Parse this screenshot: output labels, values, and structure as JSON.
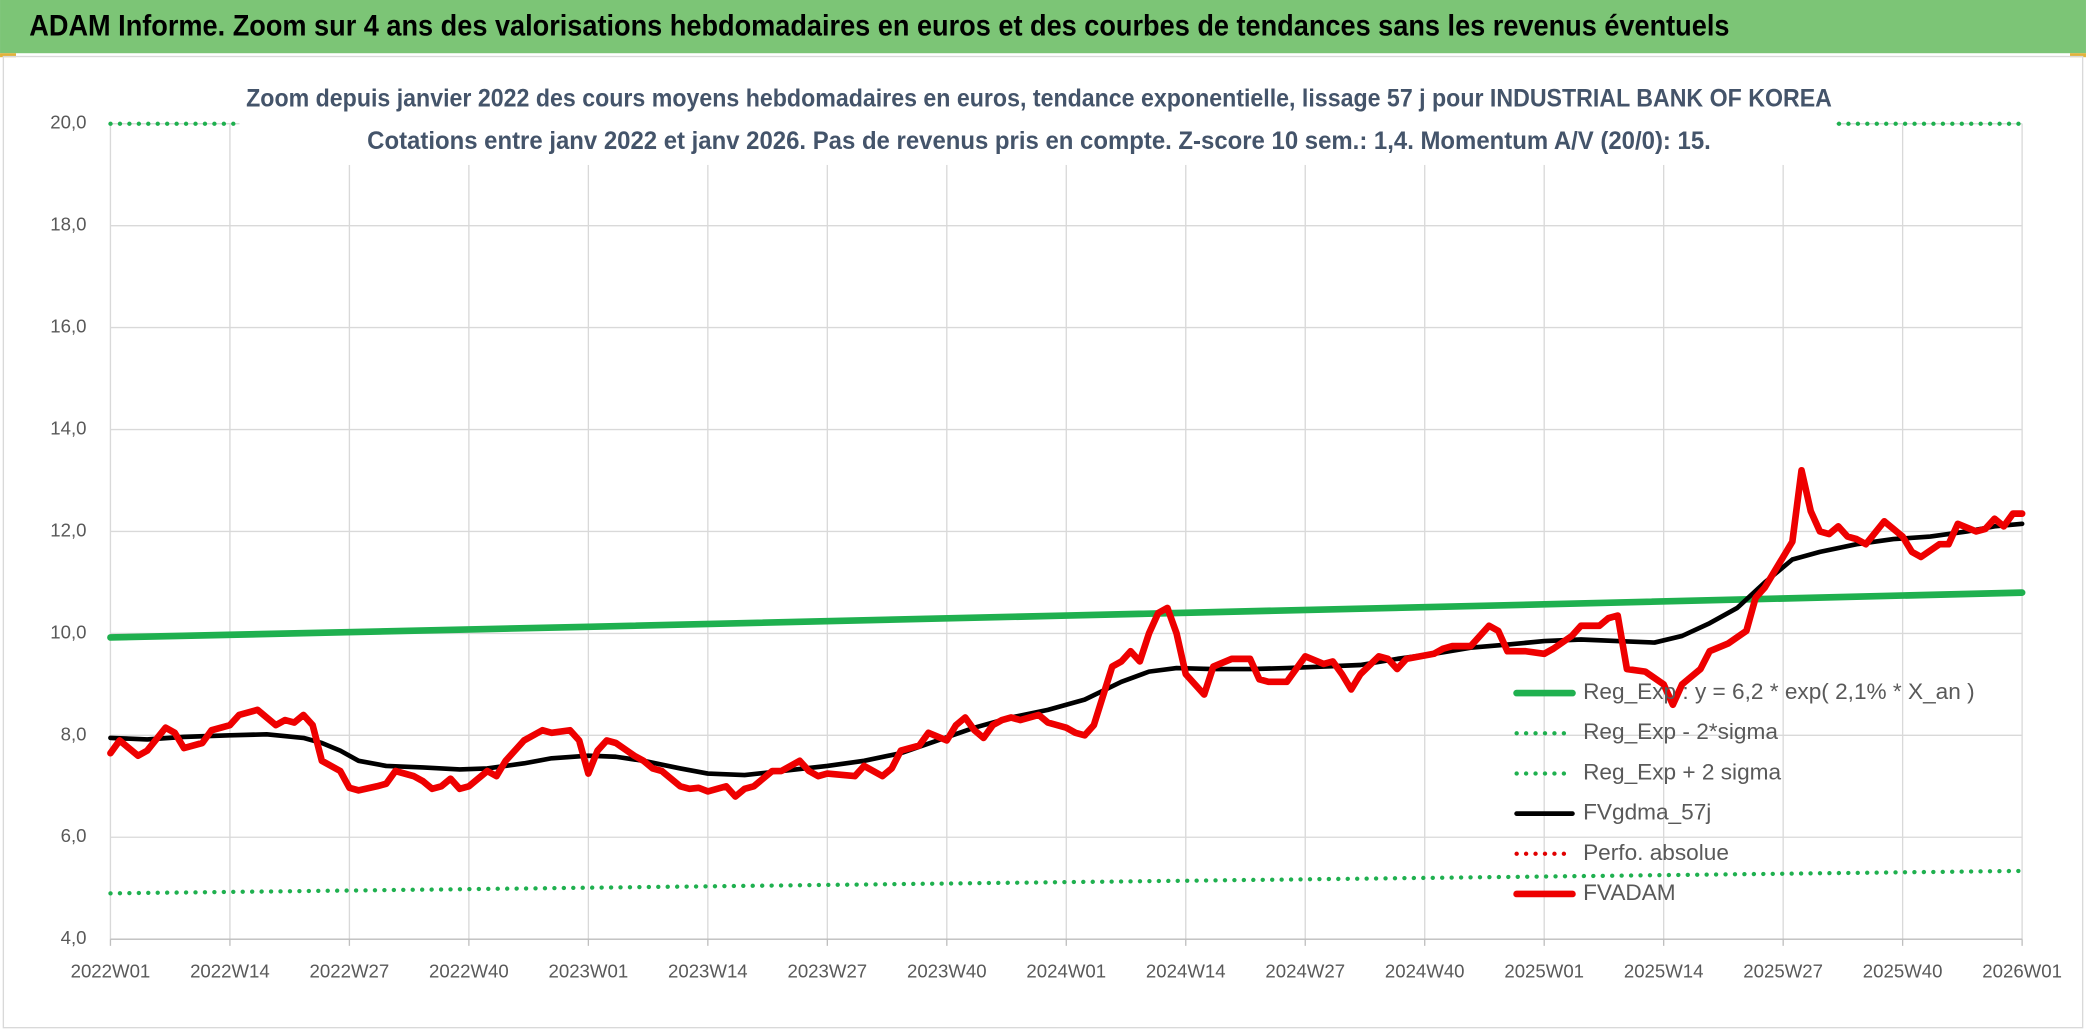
{
  "chart_data": {
    "type": "line",
    "header": "ADAM Informe. Zoom sur 4 ans des valorisations hebdomadaires en euros et des courbes de tendances sans les revenus éventuels",
    "title": "Zoom depuis janvier 2022 des cours moyens hebdomadaires en euros, tendance exponentielle, lissage 57 j pour INDUSTRIAL BANK OF KOREA",
    "subtitle": "Cotations entre janv 2022 et janv 2026. Pas de revenus pris en compte. Z-score 10 sem.: 1,4. Momentum A/V (20/0): 15.",
    "xlim": [
      "2022W01",
      "2026W01"
    ],
    "xticks": [
      "2022W01",
      "2022W14",
      "2022W27",
      "2022W40",
      "2023W01",
      "2023W14",
      "2023W27",
      "2023W40",
      "2024W01",
      "2024W14",
      "2024W27",
      "2024W40",
      "2025W01",
      "2025W14",
      "2025W27",
      "2025W40",
      "2026W01"
    ],
    "ylim": [
      4,
      20
    ],
    "yticks": [
      {
        "value": 4,
        "label": "4,0"
      },
      {
        "value": 6,
        "label": "6,0"
      },
      {
        "value": 8,
        "label": "8,0"
      },
      {
        "value": 10,
        "label": "10,0"
      },
      {
        "value": 12,
        "label": "12,0"
      },
      {
        "value": 14,
        "label": "14,0"
      },
      {
        "value": 16,
        "label": "16,0"
      },
      {
        "value": 18,
        "label": "18,0"
      },
      {
        "value": 20,
        "label": "20,0"
      }
    ],
    "grid": true,
    "legend": "right",
    "series": [
      {
        "name": "Reg_Exp : y = 6,2 * exp( 2,1% *  X_an )",
        "color": "#1fb04f",
        "style": "solid",
        "x": [
          "2022W01",
          "2023W01",
          "2024W01",
          "2025W01",
          "2026W01"
        ],
        "values": [
          9.92,
          10.13,
          10.35,
          10.57,
          10.8
        ]
      },
      {
        "name": "Reg_Exp - 2*sigma",
        "color": "#1fb04f",
        "style": "dotted",
        "x": [
          "2022W01",
          "2023W01",
          "2024W01",
          "2025W01",
          "2026W01"
        ],
        "values": [
          4.9,
          5.01,
          5.12,
          5.23,
          5.34
        ]
      },
      {
        "name": "Reg_Exp + 2 sigma",
        "color": "#1fb04f",
        "style": "dotted",
        "x": [
          "2022W01",
          "2026W01"
        ],
        "values": [
          20.0,
          20.0
        ]
      },
      {
        "name": "FVgdma_57j",
        "color": "#000000",
        "style": "solid",
        "x": [
          "2022W01",
          "2022W05",
          "2022W09",
          "2022W14",
          "2022W18",
          "2022W22",
          "2022W24",
          "2022W26",
          "2022W28",
          "2022W31",
          "2022W35",
          "2022W39",
          "2022W42",
          "2022W46",
          "2022W49",
          "2023W01",
          "2023W04",
          "2023W07",
          "2023W11",
          "2023W14",
          "2023W18",
          "2023W22",
          "2023W27",
          "2023W31",
          "2023W35",
          "2023W39",
          "2023W43",
          "2023W47",
          "2023W51",
          "2024W03",
          "2024W07",
          "2024W10",
          "2024W13",
          "2024W17",
          "2024W21",
          "2024W25",
          "2024W29",
          "2024W33",
          "2024W37",
          "2024W41",
          "2024W45",
          "2024W49",
          "2025W01",
          "2025W05",
          "2025W09",
          "2025W13",
          "2025W16",
          "2025W19",
          "2025W22",
          "2025W25",
          "2025W28",
          "2025W31",
          "2025W35",
          "2025W39",
          "2025W43",
          "2025W47",
          "2025W50",
          "2026W01"
        ],
        "values": [
          7.95,
          7.92,
          7.97,
          8.0,
          8.02,
          7.95,
          7.85,
          7.7,
          7.5,
          7.4,
          7.37,
          7.33,
          7.35,
          7.45,
          7.55,
          7.6,
          7.58,
          7.5,
          7.35,
          7.25,
          7.22,
          7.3,
          7.4,
          7.5,
          7.65,
          7.9,
          8.15,
          8.35,
          8.5,
          8.7,
          9.05,
          9.25,
          9.32,
          9.3,
          9.3,
          9.32,
          9.35,
          9.38,
          9.5,
          9.6,
          9.72,
          9.78,
          9.85,
          9.88,
          9.85,
          9.82,
          9.95,
          10.2,
          10.5,
          11.0,
          11.45,
          11.6,
          11.75,
          11.85,
          11.9,
          12.0,
          12.1,
          12.15
        ]
      },
      {
        "name": "Perfo. absolue",
        "color": "#e00000",
        "style": "dotted",
        "x": [],
        "values": []
      },
      {
        "name": "FVADAM",
        "color": "#ee0000",
        "style": "solid",
        "x": [
          "2022W01",
          "2022W02",
          "2022W04",
          "2022W05",
          "2022W07",
          "2022W08",
          "2022W09",
          "2022W11",
          "2022W12",
          "2022W14",
          "2022W15",
          "2022W17",
          "2022W19",
          "2022W20",
          "2022W21",
          "2022W22",
          "2022W23",
          "2022W24",
          "2022W26",
          "2022W27",
          "2022W28",
          "2022W30",
          "2022W31",
          "2022W32",
          "2022W34",
          "2022W35",
          "2022W36",
          "2022W37",
          "2022W38",
          "2022W39",
          "2022W40",
          "2022W42",
          "2022W43",
          "2022W44",
          "2022W46",
          "2022W48",
          "2022W49",
          "2022W51",
          "2022W52",
          "2023W01",
          "2023W02",
          "2023W03",
          "2023W04",
          "2023W06",
          "2023W07",
          "2023W08",
          "2023W09",
          "2023W11",
          "2023W12",
          "2023W13",
          "2023W14",
          "2023W16",
          "2023W17",
          "2023W18",
          "2023W19",
          "2023W21",
          "2023W22",
          "2023W24",
          "2023W25",
          "2023W26",
          "2023W27",
          "2023W30",
          "2023W31",
          "2023W33",
          "2023W34",
          "2023W35",
          "2023W37",
          "2023W38",
          "2023W40",
          "2023W41",
          "2023W42",
          "2023W43",
          "2023W44",
          "2023W45",
          "2023W46",
          "2023W47",
          "2023W48",
          "2023W50",
          "2023W51",
          "2024W01",
          "2024W02",
          "2024W03",
          "2024W04",
          "2024W06",
          "2024W07",
          "2024W08",
          "2024W09",
          "2024W10",
          "2024W11",
          "2024W12",
          "2024W13",
          "2024W14",
          "2024W16",
          "2024W17",
          "2024W19",
          "2024W21",
          "2024W22",
          "2024W23",
          "2024W25",
          "2024W26",
          "2024W27",
          "2024W29",
          "2024W30",
          "2024W31",
          "2024W32",
          "2024W33",
          "2024W35",
          "2024W36",
          "2024W37",
          "2024W38",
          "2024W41",
          "2024W42",
          "2024W43",
          "2024W45",
          "2024W47",
          "2024W48",
          "2024W49",
          "2024W51",
          "2025W01",
          "2025W02",
          "2025W04",
          "2025W05",
          "2025W07",
          "2025W08",
          "2025W09",
          "2025W10",
          "2025W12",
          "2025W14",
          "2025W15",
          "2025W16",
          "2025W18",
          "2025W19",
          "2025W21",
          "2025W23",
          "2025W24",
          "2025W25",
          "2025W27",
          "2025W28",
          "2025W29",
          "2025W30",
          "2025W31",
          "2025W32",
          "2025W33",
          "2025W34",
          "2025W35",
          "2025W36",
          "2025W38",
          "2025W40",
          "2025W41",
          "2025W42",
          "2025W44",
          "2025W45",
          "2025W46",
          "2025W48",
          "2025W49",
          "2025W50",
          "2025W51",
          "2025W52",
          "2026W01"
        ],
        "values": [
          7.65,
          7.9,
          7.6,
          7.7,
          8.15,
          8.05,
          7.75,
          7.85,
          8.1,
          8.2,
          8.4,
          8.5,
          8.2,
          8.3,
          8.25,
          8.4,
          8.2,
          7.5,
          7.3,
          6.97,
          6.92,
          7.0,
          7.05,
          7.3,
          7.2,
          7.1,
          6.95,
          7.0,
          7.15,
          6.95,
          7.0,
          7.3,
          7.2,
          7.5,
          7.9,
          8.1,
          8.05,
          8.1,
          7.9,
          7.25,
          7.7,
          7.9,
          7.85,
          7.6,
          7.5,
          7.35,
          7.3,
          7.0,
          6.95,
          6.97,
          6.9,
          7.0,
          6.8,
          6.95,
          7.0,
          7.3,
          7.3,
          7.5,
          7.3,
          7.2,
          7.25,
          7.2,
          7.4,
          7.2,
          7.35,
          7.7,
          7.8,
          8.05,
          7.9,
          8.2,
          8.35,
          8.1,
          7.95,
          8.2,
          8.3,
          8.35,
          8.3,
          8.4,
          8.25,
          8.15,
          8.05,
          8.0,
          8.2,
          9.35,
          9.45,
          9.65,
          9.45,
          10.0,
          10.4,
          10.5,
          10.0,
          9.2,
          8.8,
          9.35,
          9.5,
          9.5,
          9.1,
          9.05,
          9.05,
          9.3,
          9.55,
          9.4,
          9.45,
          9.2,
          8.9,
          9.2,
          9.55,
          9.5,
          9.3,
          9.5,
          9.6,
          9.7,
          9.75,
          9.75,
          10.15,
          10.05,
          9.65,
          9.65,
          9.6,
          9.7,
          9.95,
          10.15,
          10.15,
          10.3,
          10.35,
          9.3,
          9.25,
          9.0,
          8.6,
          9.0,
          9.3,
          9.65,
          9.8,
          10.05,
          10.7,
          10.9,
          11.5,
          11.8,
          13.2,
          12.4,
          12.0,
          11.95,
          12.1,
          11.9,
          11.85,
          11.75,
          12.2,
          11.9,
          11.6,
          11.5,
          11.75,
          11.75,
          12.15,
          12.0,
          12.05,
          12.25,
          12.1,
          12.35,
          12.35
        ]
      }
    ]
  }
}
